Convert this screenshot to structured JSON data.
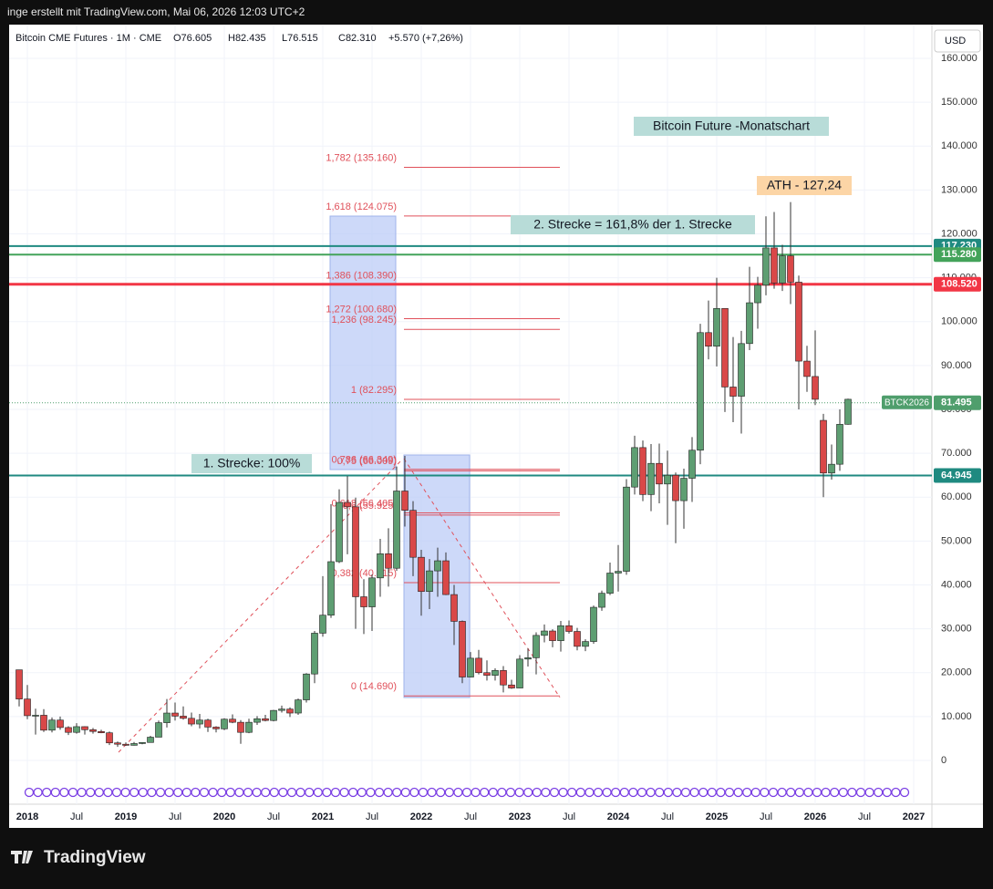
{
  "header": {
    "attribution": "inge erstellt mit TradingView.com, Mai 06, 2026 12:03 UTC+2",
    "logo": "TradingView"
  },
  "chart_data": {
    "type": "candlestick",
    "symbol": "Bitcoin CME Futures · 1M · CME",
    "ohlc_labels": [
      "O76.605",
      "H82.435",
      "L76.515",
      "C82.310",
      "+5.570 (+7,26%)"
    ],
    "currency": "USD",
    "categories": [
      null,
      "2018",
      null,
      null,
      null,
      null,
      null,
      "Jul",
      null,
      null,
      null,
      null,
      null,
      "2019",
      null,
      null,
      null,
      null,
      null,
      "Jul",
      null,
      null,
      null,
      null,
      null,
      "2020",
      null,
      null,
      null,
      null,
      null,
      "Jul",
      null,
      null,
      null,
      null,
      null,
      "2021",
      null,
      null,
      null,
      null,
      null,
      "Jul",
      null,
      null,
      null,
      null,
      null,
      "2022",
      null,
      null,
      null,
      null,
      null,
      "Jul",
      null,
      null,
      null,
      null,
      null,
      "2023",
      null,
      null,
      null,
      null,
      null,
      "Jul",
      null,
      null,
      null,
      null,
      null,
      "2024",
      null,
      null,
      null,
      null,
      null,
      "Jul",
      null,
      null,
      null,
      null,
      null,
      "2025",
      null,
      null,
      null,
      null,
      null,
      "Jul",
      null,
      null,
      null,
      null,
      null,
      "2026",
      null,
      null,
      null,
      null,
      null,
      "Jul",
      null,
      null,
      null,
      null,
      null,
      "2027"
    ],
    "open": [
      20650,
      14000,
      10200,
      10300,
      6900,
      9200,
      7500,
      6400,
      7700,
      7000,
      6600,
      6300,
      4000,
      3700,
      3450,
      3850,
      4100,
      5300,
      8600,
      10800,
      10100,
      9600,
      8300,
      9200,
      7600,
      7200,
      9400,
      8700,
      6400,
      8700,
      9500,
      9100,
      11400,
      11700,
      10800,
      13800,
      19700,
      29000,
      33100,
      45300,
      58800,
      57800,
      37300,
      35000,
      41600,
      47100,
      43800,
      61400,
      57000,
      46300,
      38500,
      43200,
      45500,
      37800,
      31700,
      19000,
      23300,
      20000,
      19400,
      20500,
      17200,
      16500,
      23100,
      23400,
      28500,
      29500,
      27300,
      30700,
      29400,
      26000,
      27100,
      34900,
      38100,
      42700,
      43100,
      62300,
      71300,
      60600,
      67700,
      63000,
      65000,
      59200,
      64300,
      70700,
      97500,
      94400,
      103000,
      85100,
      83000,
      95000,
      104300,
      108300,
      116800,
      108800,
      115000,
      109000,
      91000,
      87500,
      77500,
      65500,
      67500,
      76605,
      null,
      null,
      null,
      null,
      null,
      null,
      null,
      null
    ],
    "high": [
      20650,
      17200,
      11800,
      11700,
      9800,
      10000,
      7800,
      8500,
      7800,
      7400,
      7000,
      6600,
      4300,
      4100,
      4200,
      4150,
      5600,
      9100,
      14000,
      13200,
      12300,
      10900,
      10600,
      9500,
      7800,
      9600,
      10500,
      9200,
      9500,
      10100,
      10400,
      11500,
      12500,
      12100,
      14100,
      19900,
      29500,
      42000,
      58400,
      61800,
      64800,
      59900,
      41300,
      42400,
      50500,
      52900,
      67000,
      69400,
      59100,
      48000,
      45900,
      48500,
      47400,
      40000,
      31900,
      24700,
      25200,
      22800,
      21000,
      21500,
      18400,
      24000,
      25500,
      29200,
      31000,
      29900,
      31800,
      31900,
      30200,
      27600,
      35300,
      38700,
      45100,
      49100,
      64100,
      74000,
      72900,
      72100,
      72200,
      70600,
      65600,
      66500,
      73700,
      99500,
      104800,
      110000,
      103000,
      96500,
      97900,
      112500,
      110200,
      124000,
      125000,
      117500,
      127240,
      110500,
      94500,
      98000,
      79000,
      72000,
      80000,
      82435,
      null,
      null,
      null,
      null,
      null,
      null,
      null,
      null
    ],
    "low": [
      12300,
      9400,
      5900,
      6500,
      6400,
      7000,
      5800,
      6100,
      5900,
      6100,
      6200,
      3500,
      3100,
      3350,
      3400,
      3700,
      4050,
      5300,
      7500,
      9100,
      9300,
      7800,
      7300,
      6500,
      6400,
      6900,
      8500,
      3800,
      6200,
      8100,
      8900,
      8900,
      10900,
      9900,
      10400,
      13200,
      17600,
      28200,
      32500,
      45000,
      47000,
      30000,
      28800,
      29500,
      37300,
      39600,
      43200,
      53300,
      42000,
      33000,
      34500,
      37300,
      37700,
      26300,
      17600,
      18900,
      19600,
      18200,
      18200,
      15500,
      16300,
      16500,
      21400,
      19600,
      26900,
      25800,
      24800,
      28900,
      25100,
      24900,
      26600,
      34100,
      37700,
      38500,
      42300,
      60600,
      59100,
      56800,
      58600,
      53700,
      49500,
      52800,
      58900,
      67500,
      91400,
      89800,
      79400,
      77100,
      74500,
      93500,
      98400,
      106000,
      107500,
      107000,
      104000,
      80000,
      84000,
      81000,
      60000,
      64000,
      66000,
      76515,
      null,
      null,
      null,
      null,
      null,
      null,
      null,
      null
    ],
    "close": [
      14000,
      10200,
      10300,
      6900,
      9200,
      7500,
      6400,
      7700,
      7000,
      6600,
      6300,
      4000,
      3700,
      3450,
      3850,
      4100,
      5300,
      8600,
      10800,
      10100,
      9600,
      8300,
      9200,
      7600,
      7200,
      9400,
      8700,
      6400,
      8700,
      9500,
      9100,
      11400,
      11700,
      10800,
      13800,
      19700,
      29000,
      33100,
      45300,
      58800,
      57800,
      37300,
      35000,
      41600,
      47100,
      43800,
      61400,
      57000,
      46300,
      38500,
      43200,
      45500,
      37800,
      31700,
      19000,
      23300,
      20000,
      19400,
      20500,
      17200,
      16500,
      23100,
      23400,
      28500,
      29500,
      27300,
      30700,
      29400,
      26000,
      27100,
      34900,
      38100,
      42700,
      43100,
      62300,
      71300,
      60600,
      67700,
      63000,
      65000,
      59200,
      64300,
      70700,
      97500,
      94400,
      103000,
      85100,
      83000,
      95000,
      104300,
      108300,
      116800,
      108800,
      115000,
      109000,
      91000,
      87500,
      82300,
      65500,
      67500,
      76600,
      82310,
      null,
      null,
      null,
      null,
      null,
      null,
      null,
      null
    ],
    "up_color": "#5e9e72",
    "down_color": "#d94848",
    "ylim": [
      -9974,
      167481
    ],
    "yticks": [
      0,
      {
        "value": 10000,
        "label": "10.000"
      },
      {
        "value": 20000,
        "label": "20.000"
      },
      {
        "value": 30000,
        "label": "30.000"
      },
      {
        "value": 40000,
        "label": "40.000"
      },
      {
        "value": 50000,
        "label": "50.000"
      },
      {
        "value": 60000,
        "label": "60.000"
      },
      {
        "value": 70000,
        "label": "70.000"
      },
      {
        "value": 80000,
        "label": "80.000"
      },
      {
        "value": 90000,
        "label": "90.000"
      },
      {
        "value": 100000,
        "label": "100.000"
      },
      {
        "value": 110000,
        "label": "110.000"
      },
      {
        "value": 120000,
        "label": "120.000"
      },
      {
        "value": 130000,
        "label": "130.000"
      },
      {
        "value": 140000,
        "label": "140.000"
      },
      {
        "value": 150000,
        "label": "150.000"
      },
      {
        "value": 160000,
        "label": "160.000"
      }
    ],
    "grid": true,
    "levels": [
      {
        "value": 117230,
        "label": "117.230",
        "color": "#1f8a80"
      },
      {
        "value": 115280,
        "label": "115.280",
        "color": "#43a35a"
      },
      {
        "value": 108520,
        "label": "108.520",
        "color": "#f23645"
      },
      {
        "value": 64945,
        "label": "64.945",
        "color": "#1f8a80"
      }
    ],
    "last_price": {
      "value": 81495,
      "label": "81.495",
      "symbol": "BTCK2026",
      "color": "#4f9e6c"
    },
    "fib_color": "#e0505a",
    "fib_levels": [
      {
        "value": 135160,
        "label": "1,782 (135.160)"
      },
      {
        "value": 124075,
        "label": "1,618 (124.075)"
      },
      {
        "value": 108390,
        "label": "1,386 (108.390)"
      },
      {
        "value": 100680,
        "label": "1,272 (100.680)"
      },
      {
        "value": 98245,
        "label": "1,236 (98.245)"
      },
      {
        "value": 82295,
        "label": "1 (82.295)"
      },
      {
        "value": 66349,
        "label": "0,786 (66.349)"
      },
      {
        "value": 66009,
        "label": "0,75 (66.009)"
      },
      {
        "value": 56405,
        "label": "0,618 (56.405)"
      },
      {
        "value": 55925,
        "label": "0,6 (55.925)"
      },
      {
        "value": 40515,
        "label": "0,382 (40.515)"
      },
      {
        "value": 14690,
        "label": "0 (14.690)"
      }
    ],
    "annotations": [
      {
        "text": "Bitcoin Future -Monatschart",
        "bg": "#b8dcd8"
      },
      {
        "text": "ATH - 127,24",
        "bg": "#fcd5a6"
      },
      {
        "text": "2. Strecke = 161,8% der 1. Strecke",
        "bg": "#b8dcd8"
      },
      {
        "text": "1. Strecke: 100%",
        "bg": "#b8dcd8"
      }
    ]
  }
}
